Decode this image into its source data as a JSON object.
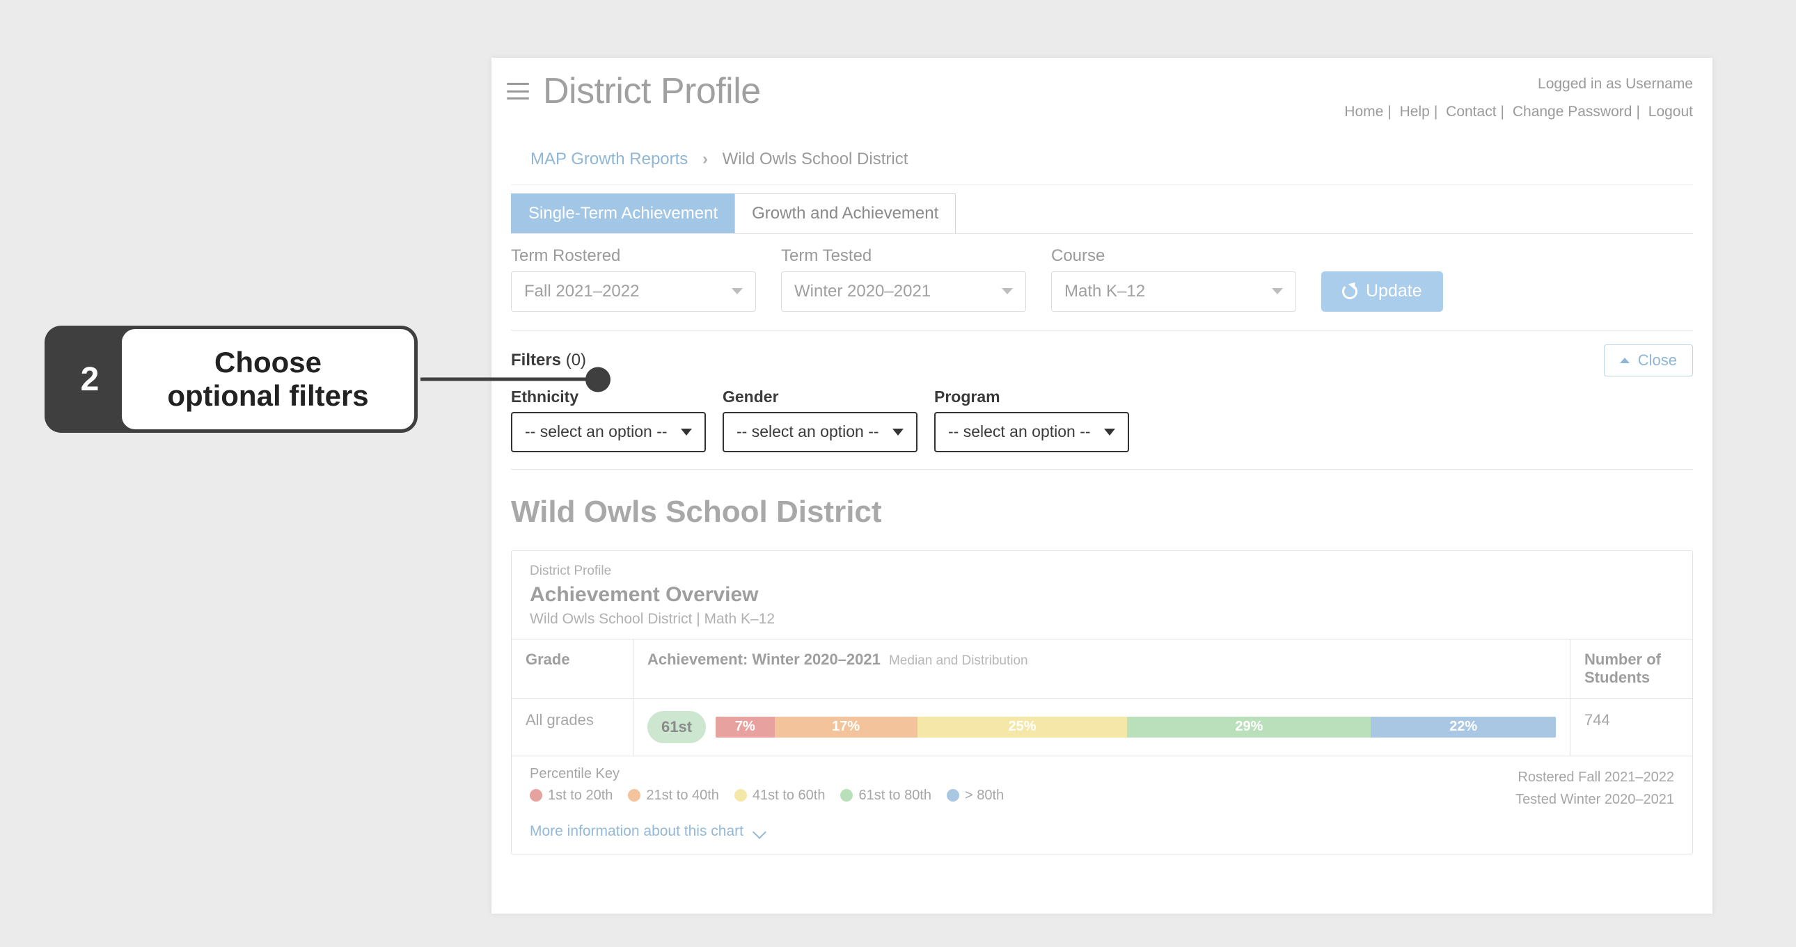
{
  "header": {
    "title": "District Profile",
    "logged_in_text": "Logged in as Username",
    "links": [
      "Home",
      "Help",
      "Contact",
      "Change Password",
      "Logout"
    ]
  },
  "breadcrumb": {
    "root": "MAP Growth Reports",
    "current": "Wild Owls School District"
  },
  "tabs": {
    "active": "Single-Term Achievement",
    "inactive": "Growth and Achievement"
  },
  "selectors": {
    "term_rostered": {
      "label": "Term Rostered",
      "value": "Fall 2021–2022"
    },
    "term_tested": {
      "label": "Term Tested",
      "value": "Winter 2020–2021"
    },
    "course": {
      "label": "Course",
      "value": "Math K–12"
    },
    "update_label": "Update"
  },
  "filters": {
    "label": "Filters",
    "count": "(0)",
    "close_label": "Close",
    "ethnicity": {
      "label": "Ethnicity",
      "placeholder": "-- select an option --"
    },
    "gender": {
      "label": "Gender",
      "placeholder": "-- select an option --"
    },
    "program": {
      "label": "Program",
      "placeholder": "-- select an option --"
    }
  },
  "district_heading": "Wild Owls School District",
  "card": {
    "section_label": "District Profile",
    "title": "Achievement Overview",
    "subtitle": "Wild Owls School District  | Math K–12",
    "columns": {
      "grade": "Grade",
      "achievement": "Achievement: Winter 2020–2021",
      "achievement_small": "Median and Distribution",
      "students": "Number of Students"
    },
    "row": {
      "grade": "All grades",
      "percentile_pill": "61st",
      "students": "744",
      "segments": [
        {
          "pct": 7,
          "label": "7%",
          "color": "#e7a2a0"
        },
        {
          "pct": 17,
          "label": "17%",
          "color": "#f3c39b"
        },
        {
          "pct": 25,
          "label": "25%",
          "color": "#f4e7a8"
        },
        {
          "pct": 29,
          "label": "29%",
          "color": "#b9e0ba"
        },
        {
          "pct": 22,
          "label": "22%",
          "color": "#a9c7e3"
        }
      ]
    },
    "pill_bg": "#cde6cf",
    "key": {
      "title": "Percentile Key",
      "items": [
        {
          "label": "1st to 20th",
          "color": "#e7a2a0"
        },
        {
          "label": "21st to 40th",
          "color": "#f3c39b"
        },
        {
          "label": "41st to 60th",
          "color": "#f4e7a8"
        },
        {
          "label": "61st to 80th",
          "color": "#b9e0ba"
        },
        {
          "label": "> 80th",
          "color": "#a9c7e3"
        }
      ]
    },
    "footer": {
      "rostered": "Rostered Fall 2021–2022",
      "tested": "Tested Winter 2020–2021"
    },
    "more_link": "More information about this chart"
  },
  "callout": {
    "number": "2",
    "line1": "Choose",
    "line2": "optional filters"
  },
  "colors": {
    "tab_active_bg": "#a2c6e6",
    "update_bg": "#a9cdeb",
    "link": "#93b9d6",
    "gray_text": "#9a9a9a",
    "callout_dark": "#3f3f3f"
  }
}
